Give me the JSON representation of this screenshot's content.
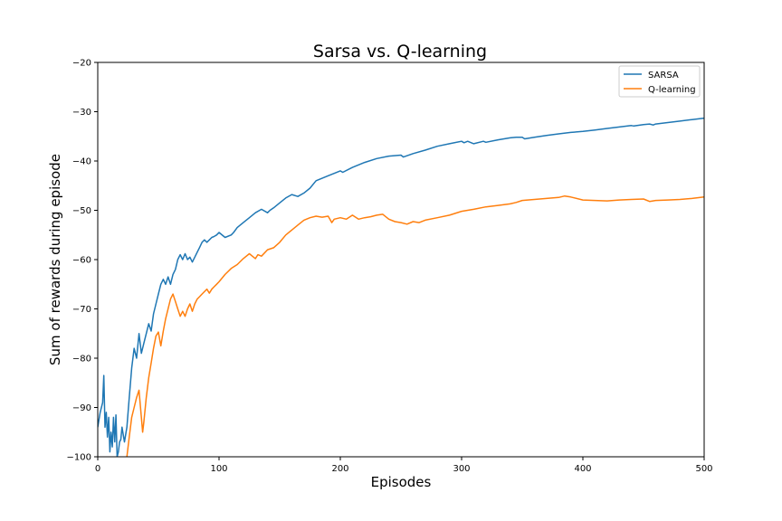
{
  "chart_data": {
    "type": "line",
    "title": "Sarsa vs. Q-learning",
    "xlabel": "Episodes",
    "ylabel": "Sum of rewards during episode",
    "xlim": [
      0,
      500
    ],
    "ylim": [
      -100,
      -20
    ],
    "xticks": [
      0,
      100,
      200,
      300,
      400,
      500
    ],
    "yticks": [
      -100,
      -90,
      -80,
      -70,
      -60,
      -50,
      -40,
      -30,
      -20
    ],
    "xtick_labels": [
      "0",
      "100",
      "200",
      "300",
      "400",
      "500"
    ],
    "ytick_labels": [
      "−100",
      "−90",
      "−80",
      "−70",
      "−60",
      "−50",
      "−40",
      "−30",
      "−20"
    ],
    "grid": false,
    "legend_position": "top-right",
    "series": [
      {
        "name": "SARSA",
        "color": "#1f77b4",
        "x": [
          0,
          2,
          4,
          5,
          6,
          7,
          8,
          9,
          10,
          11,
          12,
          13,
          14,
          15,
          16,
          17,
          18,
          19,
          20,
          22,
          24,
          26,
          28,
          30,
          32,
          34,
          36,
          38,
          40,
          42,
          44,
          46,
          48,
          50,
          52,
          54,
          56,
          58,
          60,
          62,
          64,
          66,
          68,
          70,
          72,
          74,
          76,
          78,
          80,
          82,
          84,
          86,
          88,
          90,
          92,
          94,
          96,
          98,
          100,
          105,
          110,
          112,
          115,
          120,
          125,
          130,
          135,
          140,
          142,
          145,
          150,
          155,
          160,
          165,
          170,
          175,
          180,
          190,
          200,
          202,
          210,
          220,
          230,
          240,
          250,
          252,
          260,
          270,
          280,
          290,
          300,
          302,
          305,
          310,
          318,
          320,
          330,
          340,
          345,
          350,
          352,
          360,
          370,
          380,
          390,
          400,
          410,
          420,
          430,
          440,
          442,
          450,
          455,
          458,
          460,
          470,
          480,
          490,
          500
        ],
        "values": [
          -94,
          -91,
          -89,
          -83.5,
          -94,
          -91,
          -96,
          -92,
          -99,
          -95,
          -98,
          -92,
          -97,
          -91.5,
          -100,
          -99,
          -97,
          -96.5,
          -94,
          -97,
          -94,
          -88,
          -82,
          -78,
          -80,
          -75,
          -79,
          -77,
          -75,
          -73,
          -74.5,
          -71,
          -69,
          -67,
          -65,
          -64,
          -65,
          -63.5,
          -65,
          -63,
          -62,
          -60,
          -59,
          -60,
          -58.8,
          -60,
          -59.5,
          -60.5,
          -59.5,
          -58.5,
          -57.5,
          -56.5,
          -56,
          -56.5,
          -56,
          -55.5,
          -55.3,
          -55,
          -54.5,
          -55.5,
          -55,
          -54.5,
          -53.5,
          -52.5,
          -51.5,
          -50.5,
          -49.8,
          -50.5,
          -50,
          -49.5,
          -48.5,
          -47.5,
          -46.8,
          -47.2,
          -46.5,
          -45.5,
          -44,
          -43,
          -42,
          -42.3,
          -41.3,
          -40.3,
          -39.5,
          -39,
          -38.8,
          -39.2,
          -38.5,
          -37.8,
          -37,
          -36.5,
          -36,
          -36.3,
          -36,
          -36.5,
          -36,
          -36.2,
          -35.7,
          -35.3,
          -35.2,
          -35.2,
          -35.5,
          -35.2,
          -34.8,
          -34.5,
          -34.2,
          -34,
          -33.7,
          -33.4,
          -33.1,
          -32.8,
          -32.9,
          -32.6,
          -32.5,
          -32.7,
          -32.5,
          -32.2,
          -31.9,
          -31.6,
          -31.3
        ]
      },
      {
        "name": "Q-learning",
        "color": "#ff7f0e",
        "x": [
          20,
          22,
          24,
          26,
          28,
          30,
          32,
          34,
          36,
          37,
          38,
          40,
          42,
          44,
          46,
          48,
          50,
          52,
          54,
          56,
          58,
          60,
          62,
          64,
          66,
          68,
          70,
          72,
          74,
          76,
          78,
          80,
          82,
          84,
          86,
          88,
          90,
          92,
          94,
          96,
          98,
          100,
          105,
          110,
          115,
          120,
          125,
          130,
          132,
          135,
          140,
          145,
          150,
          155,
          160,
          165,
          170,
          175,
          180,
          185,
          190,
          193,
          195,
          200,
          205,
          210,
          215,
          220,
          225,
          230,
          235,
          240,
          245,
          250,
          255,
          260,
          265,
          270,
          280,
          290,
          300,
          310,
          320,
          330,
          340,
          345,
          350,
          360,
          370,
          380,
          385,
          390,
          400,
          410,
          420,
          430,
          440,
          450,
          455,
          460,
          470,
          480,
          490,
          500
        ],
        "values": [
          -101,
          -103,
          -100,
          -96,
          -92,
          -90,
          -88,
          -86.5,
          -92,
          -95,
          -93,
          -88,
          -84,
          -81,
          -78,
          -75.5,
          -74.7,
          -77.5,
          -74.5,
          -72,
          -70,
          -68,
          -67,
          -68.5,
          -70,
          -71.5,
          -70.5,
          -71.5,
          -70,
          -69,
          -70.5,
          -69,
          -68,
          -67.5,
          -67,
          -66.5,
          -66,
          -66.8,
          -66,
          -65.5,
          -65,
          -64.5,
          -63,
          -61.8,
          -61,
          -59.8,
          -58.8,
          -59.8,
          -59,
          -59.3,
          -58,
          -57.6,
          -56.5,
          -55,
          -54,
          -53,
          -52,
          -51.5,
          -51.2,
          -51.4,
          -51.2,
          -52.5,
          -51.8,
          -51.5,
          -51.8,
          -51,
          -51.8,
          -51.5,
          -51.3,
          -51,
          -50.8,
          -51.8,
          -52.3,
          -52.5,
          -52.8,
          -52.3,
          -52.5,
          -52,
          -51.5,
          -51,
          -50.2,
          -49.8,
          -49.3,
          -49,
          -48.7,
          -48.4,
          -48,
          -47.8,
          -47.6,
          -47.4,
          -47.1,
          -47.3,
          -47.9,
          -48,
          -48.1,
          -47.9,
          -47.8,
          -47.7,
          -48.2,
          -48,
          -47.9,
          -47.8,
          -47.6,
          -47.3
        ]
      }
    ]
  }
}
